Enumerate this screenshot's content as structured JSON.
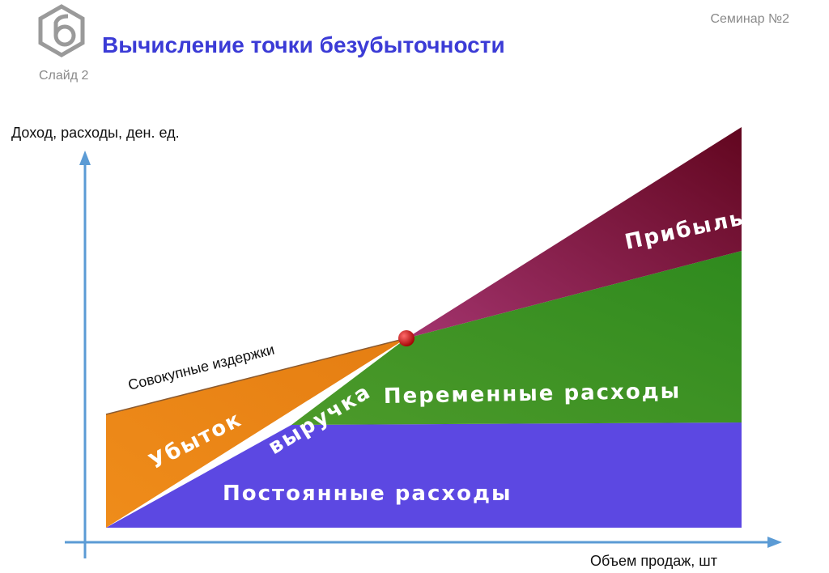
{
  "header": {
    "seminar": "Семинар №2",
    "title": "Вычисление точки безубыточности",
    "slide": "Слайд 2"
  },
  "diagram": {
    "y_axis_label": "Доход, расходы, ден. ед.",
    "x_axis_label": "Объем продаж, шт",
    "total_costs_label": "Совокупные издержки",
    "regions": {
      "profit": "Прибыль",
      "variable_costs": "Переменные расходы",
      "loss": "Убыток",
      "revenue": "выручка",
      "fixed_costs": "Постоянные расходы"
    }
  }
}
